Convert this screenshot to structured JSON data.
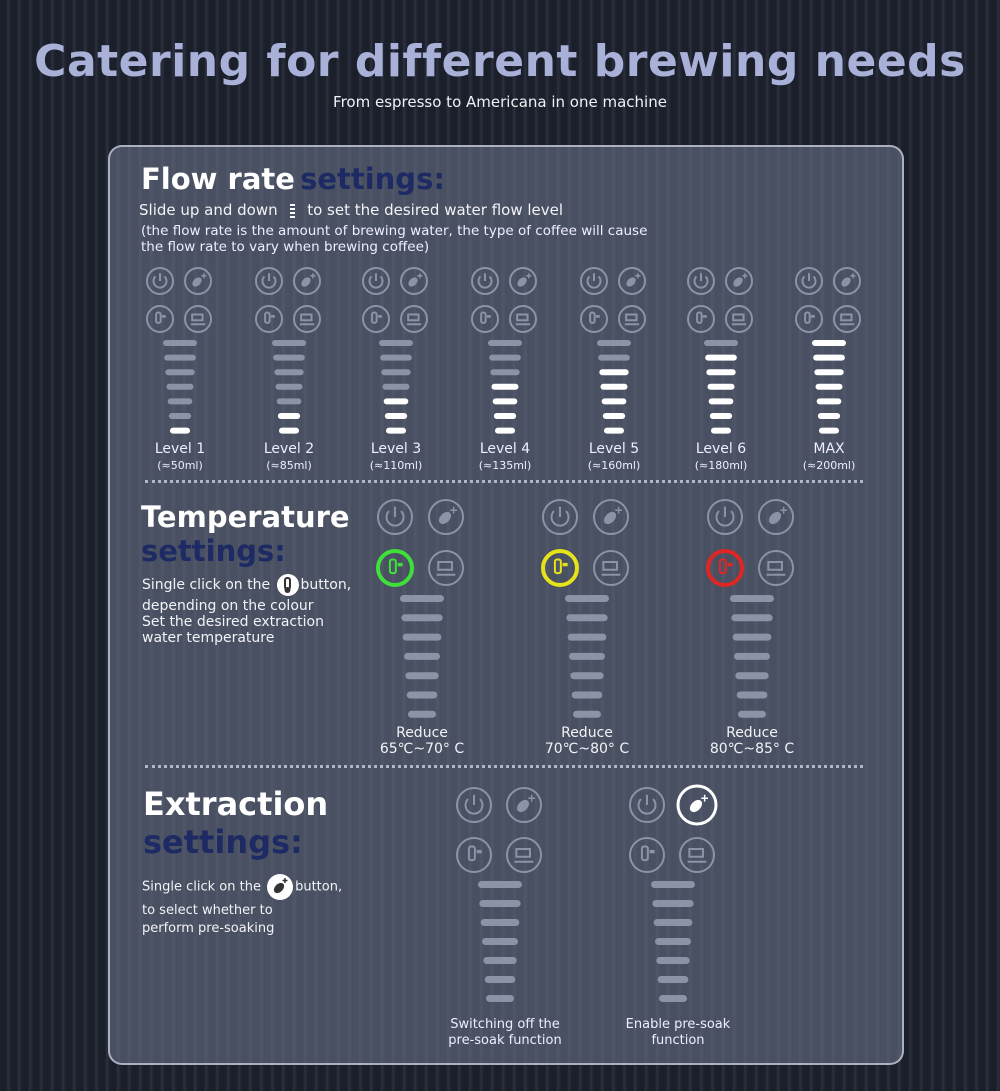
{
  "header": {
    "title": "Catering for different brewing needs",
    "subtitle": "From espresso to Americana in one machine"
  },
  "flow": {
    "title_main": "Flow rate",
    "title_accent": "settings:",
    "desc_a": "Slide up and down",
    "desc_b": "to set the desired water flow level",
    "note_lines": [
      "(the flow rate is the amount of brewing water, the type of coffee will cause",
      "the flow rate to vary when brewing coffee)"
    ],
    "levels": [
      {
        "label": "Level 1",
        "volume": "(≈50ml)"
      },
      {
        "label": "Level 2",
        "volume": "(≈85ml)"
      },
      {
        "label": "Level 3",
        "volume": "(≈110ml)"
      },
      {
        "label": "Level 4",
        "volume": "(≈135ml)"
      },
      {
        "label": "Level 5",
        "volume": "(≈160ml)"
      },
      {
        "label": "Level 6",
        "volume": "(≈180ml)"
      },
      {
        "label": "MAX",
        "volume": "(≈200ml)"
      }
    ]
  },
  "temperature": {
    "title_main": "Temperature",
    "title_accent": "settings:",
    "desc_a": "Single click on the",
    "desc_b": "button,",
    "desc_lines": [
      "depending on the colour",
      "Set the desired extraction",
      "water temperature"
    ],
    "modes": [
      {
        "label": "Reduce",
        "range": "65℃~70° C"
      },
      {
        "label": "Reduce",
        "range": "70℃~80° C"
      },
      {
        "label": "Reduce",
        "range": "80℃~85° C"
      }
    ]
  },
  "extraction": {
    "title_main": "Extraction",
    "title_accent": "settings:",
    "desc_a": "Single click on the",
    "desc_b": "button,",
    "desc_lines": [
      "to select whether to",
      "perform pre-soaking"
    ],
    "modes": [
      {
        "lines": [
          "Switching off the",
          "pre-soak function"
        ]
      },
      {
        "lines": [
          "Enable pre-soak",
          "function"
        ]
      }
    ]
  }
}
